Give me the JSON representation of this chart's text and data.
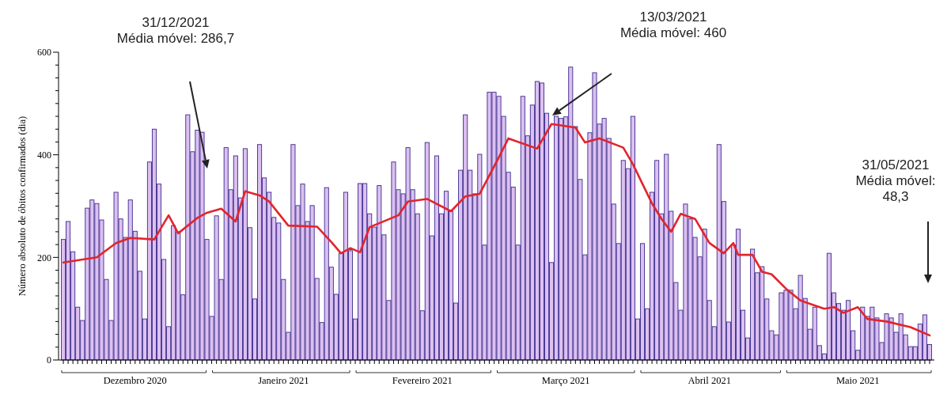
{
  "chart_data": {
    "type": "bar",
    "ylabel": "Número absoluto de óbitos confirmados (dia)",
    "xlim": [
      "2020-11-30",
      "2021-06-01"
    ],
    "xticks": [
      {
        "value": "2020-12-16",
        "label": "Dezembro 2020"
      },
      {
        "value": "2021-01-16",
        "label": "Janeiro 2021"
      },
      {
        "value": "2021-02-14",
        "label": "Fevereiro 2021"
      },
      {
        "value": "2021-03-16",
        "label": "Março 2021"
      },
      {
        "value": "2021-04-15",
        "label": "Abril 2021"
      },
      {
        "value": "2021-05-16",
        "label": "Maio 2021"
      }
    ],
    "ylim": [
      0,
      600
    ],
    "yticks": [
      0,
      {
        "value": 25,
        "label": null
      },
      {
        "value": 50,
        "label": null
      },
      {
        "value": 75,
        "label": null
      },
      {
        "value": 100,
        "label": null
      },
      {
        "value": 125,
        "label": null
      },
      {
        "value": 150,
        "label": null
      },
      {
        "value": 175,
        "label": null
      },
      200,
      {
        "value": 225,
        "label": null
      },
      {
        "value": 250,
        "label": null
      },
      {
        "value": 275,
        "label": null
      },
      {
        "value": 300,
        "label": null
      },
      {
        "value": 325,
        "label": null
      },
      {
        "value": 350,
        "label": null
      },
      {
        "value": 375,
        "label": null
      },
      400,
      {
        "value": 425,
        "label": null
      },
      {
        "value": 450,
        "label": null
      },
      {
        "value": 475,
        "label": null
      },
      {
        "value": 500,
        "label": null
      },
      {
        "value": 525,
        "label": null
      },
      {
        "value": 550,
        "label": null
      },
      {
        "value": 575,
        "label": null
      },
      600
    ],
    "series": [
      {
        "color": "#dcc0f0",
        "x": [
          "2020-12-01",
          "2020-12-02",
          "2020-12-03",
          "2020-12-04",
          "2020-12-05",
          "2020-12-06",
          "2020-12-07",
          "2020-12-08",
          "2020-12-09",
          "2020-12-10",
          "2020-12-11",
          "2020-12-12",
          "2020-12-13",
          "2020-12-14",
          "2020-12-15",
          "2020-12-16",
          "2020-12-17",
          "2020-12-18",
          "2020-12-19",
          "2020-12-20",
          "2020-12-21",
          "2020-12-22",
          "2020-12-23",
          "2020-12-24",
          "2020-12-25",
          "2020-12-26",
          "2020-12-27",
          "2020-12-28",
          "2020-12-29",
          "2020-12-30",
          "2020-12-31",
          "2021-01-01",
          "2021-01-02",
          "2021-01-03",
          "2021-01-04",
          "2021-01-05",
          "2021-01-06",
          "2021-01-07",
          "2021-01-08",
          "2021-01-09",
          "2021-01-10",
          "2021-01-11",
          "2021-01-12",
          "2021-01-13",
          "2021-01-14",
          "2021-01-15",
          "2021-01-16",
          "2021-01-17",
          "2021-01-18",
          "2021-01-19",
          "2021-01-20",
          "2021-01-21",
          "2021-01-22",
          "2021-01-23",
          "2021-01-24",
          "2021-01-25",
          "2021-01-26",
          "2021-01-27",
          "2021-01-28",
          "2021-01-29",
          "2021-01-30",
          "2021-01-31",
          "2021-02-01",
          "2021-02-02",
          "2021-02-03",
          "2021-02-04",
          "2021-02-05",
          "2021-02-06",
          "2021-02-07",
          "2021-02-08",
          "2021-02-09",
          "2021-02-10",
          "2021-02-11",
          "2021-02-12",
          "2021-02-13",
          "2021-02-14",
          "2021-02-15",
          "2021-02-16",
          "2021-02-17",
          "2021-02-18",
          "2021-02-19",
          "2021-02-20",
          "2021-02-21",
          "2021-02-22",
          "2021-02-23",
          "2021-02-24",
          "2021-02-25",
          "2021-02-26",
          "2021-02-27",
          "2021-02-28",
          "2021-03-01",
          "2021-03-02",
          "2021-03-03",
          "2021-03-04",
          "2021-03-05",
          "2021-03-06",
          "2021-03-07",
          "2021-03-08",
          "2021-03-09",
          "2021-03-10",
          "2021-03-11",
          "2021-03-12",
          "2021-03-13",
          "2021-03-14",
          "2021-03-15",
          "2021-03-16",
          "2021-03-17",
          "2021-03-18",
          "2021-03-19",
          "2021-03-20",
          "2021-03-21",
          "2021-03-22",
          "2021-03-23",
          "2021-03-24",
          "2021-03-25",
          "2021-03-26",
          "2021-03-27",
          "2021-03-28",
          "2021-03-29",
          "2021-03-30",
          "2021-03-31",
          "2021-04-01",
          "2021-04-02",
          "2021-04-03",
          "2021-04-04",
          "2021-04-05",
          "2021-04-06",
          "2021-04-07",
          "2021-04-08",
          "2021-04-09",
          "2021-04-10",
          "2021-04-11",
          "2021-04-12",
          "2021-04-13",
          "2021-04-14",
          "2021-04-15",
          "2021-04-16",
          "2021-04-17",
          "2021-04-18",
          "2021-04-19",
          "2021-04-20",
          "2021-04-21",
          "2021-04-22",
          "2021-04-23",
          "2021-04-24",
          "2021-04-25",
          "2021-04-26",
          "2021-04-27",
          "2021-04-28",
          "2021-04-29",
          "2021-04-30",
          "2021-05-01",
          "2021-05-02",
          "2021-05-03",
          "2021-05-04",
          "2021-05-05",
          "2021-05-06",
          "2021-05-07",
          "2021-05-08",
          "2021-05-09",
          "2021-05-10",
          "2021-05-11",
          "2021-05-12",
          "2021-05-13",
          "2021-05-14",
          "2021-05-15",
          "2021-05-16",
          "2021-05-17",
          "2021-05-18",
          "2021-05-19",
          "2021-05-20",
          "2021-05-21",
          "2021-05-22",
          "2021-05-23",
          "2021-05-24",
          "2021-05-25",
          "2021-05-26",
          "2021-05-27",
          "2021-05-28",
          "2021-05-29",
          "2021-05-30",
          "2021-05-31"
        ],
        "values": [
          235,
          270,
          211,
          103,
          77,
          296,
          312,
          305,
          273,
          157,
          77,
          327,
          275,
          239,
          312,
          251,
          173,
          80,
          386,
          450,
          343,
          196,
          65,
          262,
          250,
          127,
          478,
          406,
          448,
          444,
          235,
          85,
          281,
          157,
          414,
          332,
          398,
          316,
          412,
          258,
          119,
          420,
          355,
          327,
          278,
          267,
          157,
          54,
          420,
          301,
          343,
          270,
          301,
          159,
          73,
          336,
          181,
          128,
          208,
          327,
          213,
          80,
          344,
          344,
          285,
          259,
          340,
          244,
          116,
          386,
          332,
          324,
          414,
          332,
          285,
          96,
          424,
          242,
          398,
          285,
          329,
          290,
          111,
          370,
          478,
          370,
          324,
          401,
          224,
          522,
          522,
          514,
          475,
          366,
          337,
          224,
          514,
          437,
          497,
          543,
          540,
          481,
          190,
          475,
          471,
          474,
          571,
          455,
          352,
          205,
          443,
          560,
          460,
          471,
          432,
          304,
          227,
          389,
          373,
          475,
          80,
          227,
          100,
          327,
          389,
          285,
          401,
          290,
          151,
          97,
          304,
          275,
          239,
          201,
          255,
          116,
          65,
          420,
          309,
          74,
          224,
          255,
          97,
          43,
          216,
          170,
          182,
          119,
          57,
          49,
          131,
          136,
          136,
          100,
          165,
          120,
          60,
          103,
          28,
          12,
          208,
          131,
          110,
          97,
          116,
          57,
          19,
          103,
          85,
          103,
          82,
          34,
          90,
          82,
          54,
          90,
          49,
          26,
          26,
          70,
          88,
          30
        ]
      },
      {
        "type": "line",
        "color": "#e3242b",
        "x": [
          "2020-12-01",
          "2020-12-08",
          "2020-12-12",
          "2020-12-15",
          "2020-12-20",
          "2020-12-23",
          "2020-12-25",
          "2020-12-29",
          "2020-12-31",
          "2021-01-03",
          "2021-01-06",
          "2021-01-08",
          "2021-01-11",
          "2021-01-13",
          "2021-01-17",
          "2021-01-23",
          "2021-01-26",
          "2021-01-28",
          "2021-01-30",
          "2021-02-01",
          "2021-02-03",
          "2021-02-09",
          "2021-02-11",
          "2021-02-15",
          "2021-02-20",
          "2021-02-23",
          "2021-02-26",
          "2021-03-02",
          "2021-03-04",
          "2021-03-10",
          "2021-03-13",
          "2021-03-18",
          "2021-03-20",
          "2021-03-23",
          "2021-03-28",
          "2021-03-30",
          "2021-04-03",
          "2021-04-05",
          "2021-04-07",
          "2021-04-09",
          "2021-04-12",
          "2021-04-15",
          "2021-04-18",
          "2021-04-20",
          "2021-04-21",
          "2021-04-24",
          "2021-04-26",
          "2021-04-28",
          "2021-05-01",
          "2021-05-04",
          "2021-05-09",
          "2021-05-11",
          "2021-05-13",
          "2021-05-16",
          "2021-05-18",
          "2021-05-22",
          "2021-05-27",
          "2021-05-31"
        ],
        "values": [
          190,
          200,
          228,
          238,
          235,
          282,
          247,
          277,
          287,
          295,
          270,
          329,
          321,
          309,
          262,
          260,
          230,
          208,
          218,
          210,
          259,
          282,
          309,
          314,
          290,
          319,
          324,
          395,
          432,
          412,
          460,
          453,
          424,
          432,
          414,
          382,
          305,
          275,
          250,
          285,
          275,
          228,
          208,
          228,
          205,
          205,
          172,
          167,
          139,
          116,
          100,
          103,
          92,
          103,
          80,
          75,
          64,
          48
        ]
      }
    ],
    "annotations": [
      "31/12/2021\nMédia móvel: 286,7",
      "13/03/2021\nMédia móvel: 460",
      "31/05/2021\nMédia móvel:\n48,3"
    ]
  }
}
